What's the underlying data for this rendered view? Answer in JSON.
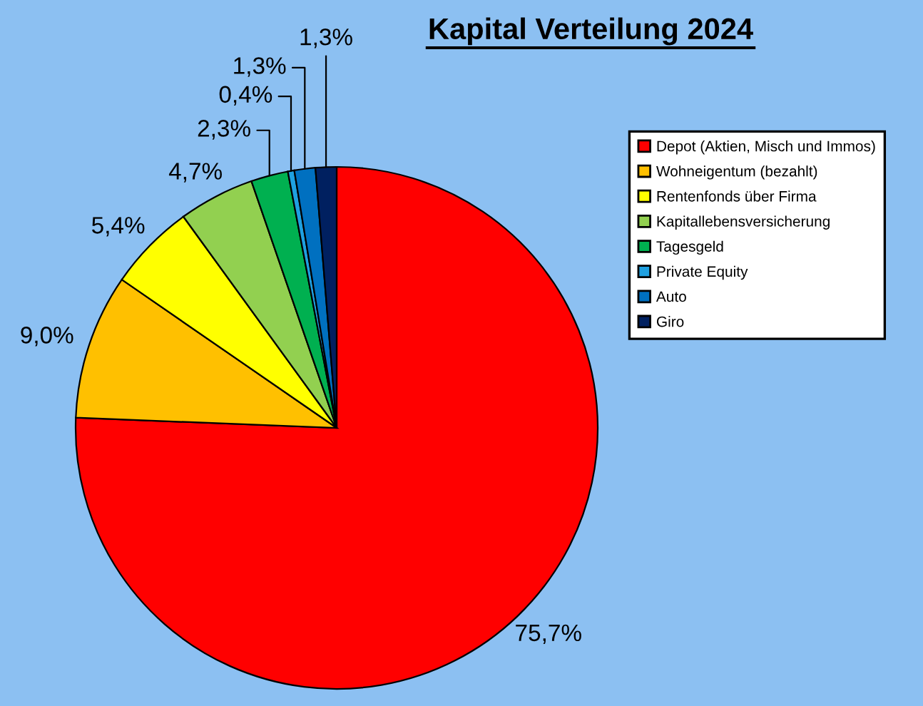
{
  "chart_data": {
    "type": "pie",
    "title": "Kapital Verteilung 2024",
    "categories": [
      "Depot (Aktien, Misch und Immos)",
      "Wohneigentum (bezahlt)",
      "Rentenfonds über Firma",
      "Kapitallebensversicherung",
      "Tagesgeld",
      "Private Equity",
      "Auto",
      "Giro"
    ],
    "values": [
      75.7,
      9.0,
      5.4,
      4.7,
      2.3,
      0.4,
      1.3,
      1.3
    ],
    "value_labels": [
      "75,7%",
      "9,0%",
      "5,4%",
      "4,7%",
      "2,3%",
      "0,4%",
      "1,3%",
      "1,3%"
    ],
    "colors": [
      "#ff0000",
      "#ffc000",
      "#ffff00",
      "#92d050",
      "#00b050",
      "#1fa0e0",
      "#0070c0",
      "#002060"
    ],
    "legend": "right"
  }
}
